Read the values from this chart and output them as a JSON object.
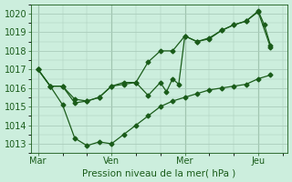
{
  "background_color": "#cceedd",
  "grid_color": "#aaccbb",
  "line_color": "#1a5c1a",
  "title": "Pression niveau de la mer( hPa )",
  "ylim": [
    1012.5,
    1020.5
  ],
  "yticks": [
    1013,
    1014,
    1015,
    1016,
    1017,
    1018,
    1019,
    1020
  ],
  "xtick_labels": [
    "Mar",
    "Ven",
    "Mer",
    "Jeu"
  ],
  "xtick_positions": [
    0,
    3,
    6,
    9
  ],
  "xlim": [
    -0.3,
    10.2
  ],
  "line1_x": [
    0,
    0.5,
    1.0,
    1.5,
    2.0,
    2.5,
    3.0,
    3.5,
    4.0,
    4.5,
    5.0,
    5.5,
    6.0,
    6.5,
    7.0,
    7.5,
    8.0,
    8.5,
    9.0,
    9.5
  ],
  "line1_y": [
    1017.0,
    1016.1,
    1015.1,
    1013.3,
    1012.9,
    1013.1,
    1013.0,
    1013.5,
    1014.0,
    1014.5,
    1015.0,
    1015.3,
    1015.5,
    1015.7,
    1015.9,
    1016.0,
    1016.1,
    1016.2,
    1016.5,
    1016.7
  ],
  "line2_x": [
    0,
    0.5,
    1.0,
    1.5,
    2.0,
    2.5,
    3.0,
    3.5,
    4.0,
    4.5,
    5.0,
    5.25,
    5.5,
    5.75,
    6.0,
    6.5,
    7.0,
    7.5,
    8.0,
    8.5,
    9.0,
    9.5
  ],
  "line2_y": [
    1017.0,
    1016.1,
    1016.1,
    1015.2,
    1015.3,
    1015.5,
    1016.1,
    1016.2,
    1016.3,
    1015.6,
    1016.3,
    1015.8,
    1016.5,
    1016.2,
    1018.8,
    1018.5,
    1018.65,
    1019.1,
    1019.4,
    1019.6,
    1020.1,
    1018.2
  ],
  "line3_x": [
    0,
    0.5,
    1.0,
    1.5,
    2.0,
    2.5,
    3.0,
    3.5,
    4.0,
    4.5,
    5.0,
    5.5,
    6.0,
    6.5,
    7.0,
    7.5,
    8.0,
    8.5,
    9.0,
    9.25,
    9.5
  ],
  "line3_y": [
    1017.0,
    1016.1,
    1016.1,
    1015.4,
    1015.3,
    1015.5,
    1016.1,
    1016.3,
    1016.3,
    1017.4,
    1018.0,
    1018.0,
    1018.8,
    1018.5,
    1018.7,
    1019.1,
    1019.4,
    1019.6,
    1020.15,
    1019.4,
    1018.3
  ],
  "vline_positions": [
    0,
    3,
    6,
    9
  ],
  "markersize": 2.5
}
